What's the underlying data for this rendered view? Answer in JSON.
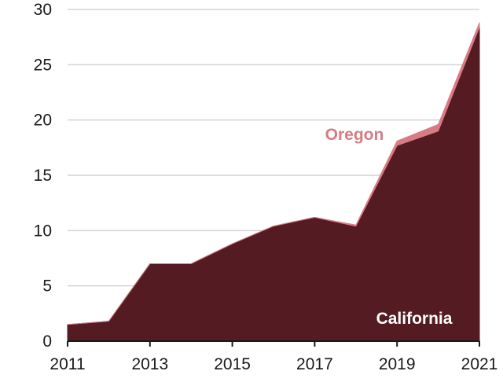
{
  "chart_data": {
    "type": "area",
    "stacked": true,
    "title": "",
    "xlabel": "",
    "ylabel": "",
    "x": [
      2011,
      2012,
      2013,
      2014,
      2015,
      2016,
      2017,
      2018,
      2019,
      2020,
      2021
    ],
    "series": [
      {
        "name": "California",
        "color": "#541b22",
        "label_color": "#ffffff",
        "values": [
          1.5,
          1.8,
          7.0,
          7.0,
          8.8,
          10.4,
          11.2,
          10.4,
          17.7,
          19.0,
          28.4
        ]
      },
      {
        "name": "Oregon",
        "color": "#d77c84",
        "label_color": "#d77c84",
        "values": [
          0,
          0,
          0,
          0,
          0,
          0,
          0,
          0.1,
          0.4,
          0.6,
          0.4
        ]
      }
    ],
    "ylim": [
      0,
      30
    ],
    "yticks": [
      0,
      5,
      10,
      15,
      20,
      25,
      30
    ],
    "xticks": [
      2011,
      2013,
      2015,
      2017,
      2019,
      2021
    ],
    "grid": true,
    "legend": "inline"
  }
}
